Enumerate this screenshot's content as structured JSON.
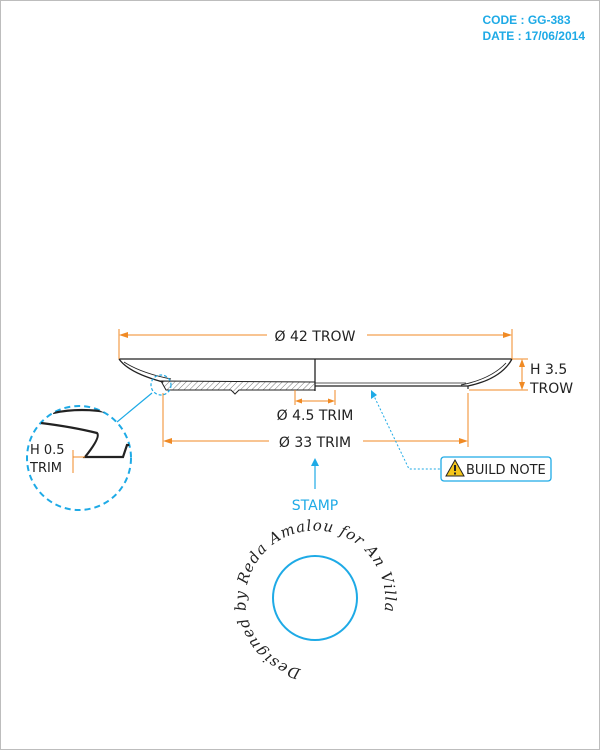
{
  "header": {
    "code_label": "CODE :",
    "code_value": "GG-383",
    "date_label": "DATE :",
    "date_value": "17/06/2014"
  },
  "colors": {
    "accent": "#1eaae6",
    "dimension": "#f08a24",
    "line": "#222222"
  },
  "dimensions": {
    "outer_diameter": "Ø 42 TROW",
    "height": "H 3.5",
    "height_unit": "TROW",
    "center_diameter": "Ø 4.5 TRIM",
    "base_diameter": "Ø 33 TRIM",
    "detail_height": "H 0.5",
    "detail_unit": "TRIM"
  },
  "build_note": {
    "icon": "warning-icon",
    "label": "BUILD NOTE"
  },
  "stamp": {
    "label": "STAMP",
    "text": "Designed by Reda Amalou for An Villa"
  }
}
